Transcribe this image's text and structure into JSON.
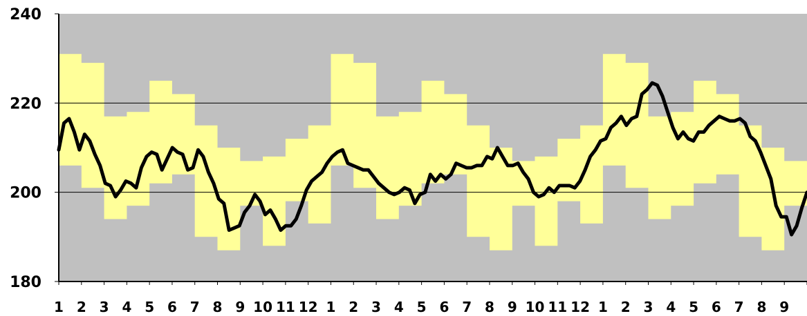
{
  "chart_data": {
    "type": "line",
    "title": "",
    "xlabel": "",
    "ylabel": "",
    "ylim": [
      180,
      240
    ],
    "yticks": [
      "180",
      "200",
      "220",
      "240"
    ],
    "gridlines": [
      200,
      220
    ],
    "grid": true,
    "legend": "none",
    "xtick_labels": [
      "1",
      "2",
      "3",
      "4",
      "5",
      "6",
      "7",
      "8",
      "9",
      "10",
      "11",
      "12",
      "1",
      "2",
      "3",
      "4",
      "5",
      "6",
      "7",
      "8",
      "9",
      "10",
      "11",
      "12",
      "1",
      "2",
      "3",
      "4",
      "5",
      "6",
      "7",
      "8",
      "9"
    ],
    "colors": {
      "plot_background": "#c0c0c0",
      "band_fill": "#ffff99",
      "line": "#000000",
      "gridline": "#000000"
    },
    "band_monthly": {
      "upper": [
        231,
        229,
        217,
        218,
        225,
        222,
        215,
        210,
        207,
        208,
        212,
        215,
        231,
        229,
        217,
        218,
        225,
        222,
        215,
        210,
        207,
        208,
        212,
        215,
        231,
        229,
        217,
        218,
        225,
        222,
        215,
        210,
        207
      ],
      "lower": [
        206,
        201,
        194,
        197,
        202,
        204,
        190,
        187,
        197,
        188,
        198,
        193,
        206,
        201,
        194,
        197,
        202,
        204,
        190,
        187,
        197,
        188,
        198,
        193,
        206,
        201,
        194,
        197,
        202,
        204,
        190,
        187,
        197
      ]
    },
    "series": [
      {
        "values": [
          209.5,
          215.5,
          216.5,
          213.5,
          209.5,
          213,
          211.5,
          208.5,
          206,
          202,
          201.5,
          199,
          200.5,
          202.5,
          202,
          201,
          205.5,
          208,
          209,
          208.5,
          205,
          207.5,
          210,
          209,
          208.5,
          205,
          205.5,
          209.5,
          208,
          204.5,
          202,
          198.5,
          197.5,
          191.5,
          192,
          192.5,
          195.5,
          197,
          199.5,
          198,
          195,
          196,
          194,
          191.5,
          192.5,
          192.5,
          194,
          197,
          200.5,
          202.5,
          203.5,
          204.5,
          206.5,
          208,
          209,
          209.5,
          206.5,
          206,
          205.5,
          205,
          205,
          203.5,
          202,
          201,
          200,
          199.5,
          200,
          201,
          200.5,
          197.5,
          199.5,
          200,
          204,
          202.5,
          204,
          203,
          204,
          206.5,
          206,
          205.5,
          205.5,
          206,
          206,
          208,
          207.5,
          210,
          208,
          206,
          206,
          206.5,
          204.5,
          203,
          200,
          199,
          199.5,
          201,
          200,
          201.5,
          201.5,
          201.5,
          201,
          202.5,
          205,
          208,
          209.5,
          211.5,
          212,
          214.5,
          215.5,
          217,
          215,
          216.5,
          217,
          222,
          223,
          224.5,
          224,
          221.5,
          218,
          214.5,
          212,
          213.5,
          212,
          211.5,
          213.5,
          213.5,
          215,
          216,
          217,
          216.5,
          216,
          216,
          216.5,
          215.5,
          212.5,
          211.5,
          209,
          206,
          203,
          197,
          194.5,
          194.5,
          190.5,
          192.5,
          196.5,
          200
        ]
      }
    ]
  }
}
